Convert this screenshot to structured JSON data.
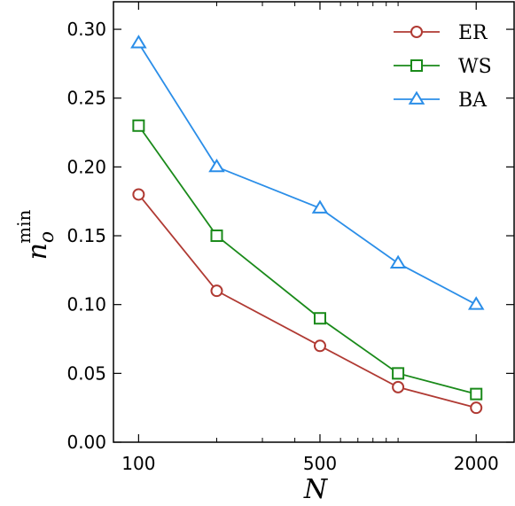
{
  "chart_data": {
    "type": "line",
    "x": [
      100,
      200,
      500,
      1000,
      2000
    ],
    "x_tick_labels": [
      "100",
      "500",
      "2000"
    ],
    "x_tick_values": [
      100,
      500,
      2000
    ],
    "x_scale": "log",
    "xlim": [
      80,
      2800
    ],
    "xlabel": "N",
    "ylabel": {
      "base": "n",
      "subscript": "o",
      "superscript": "min"
    },
    "ylim": [
      0,
      0.32
    ],
    "y_ticks": [
      0.0,
      0.05,
      0.1,
      0.15,
      0.2,
      0.25,
      0.3
    ],
    "y_tick_labels": [
      "0.00",
      "0.05",
      "0.10",
      "0.15",
      "0.20",
      "0.25",
      "0.30"
    ],
    "grid": false,
    "legend_position": "top-right",
    "series": [
      {
        "name": "ER",
        "values": [
          0.18,
          0.11,
          0.07,
          0.04,
          0.025
        ],
        "color": "#b03a33",
        "marker": "circle"
      },
      {
        "name": "WS",
        "values": [
          0.23,
          0.15,
          0.09,
          0.05,
          0.035
        ],
        "color": "#1a8a1a",
        "marker": "square"
      },
      {
        "name": "BA",
        "values": [
          0.29,
          0.2,
          0.17,
          0.13,
          0.1
        ],
        "color": "#2b8ee8",
        "marker": "triangle"
      }
    ]
  }
}
